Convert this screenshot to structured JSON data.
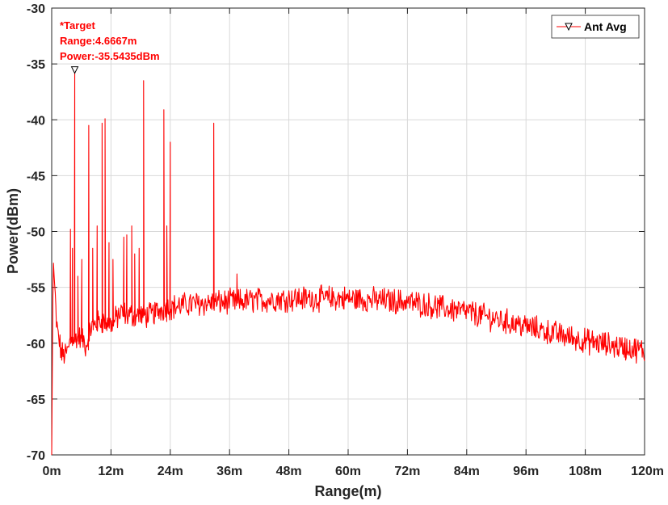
{
  "chart_data": {
    "type": "line",
    "title": "",
    "xlabel": "Range(m)",
    "ylabel": "Power(dBm)",
    "xlim": [
      0,
      120
    ],
    "ylim": [
      -70,
      -30
    ],
    "xticks": [
      0,
      12,
      24,
      36,
      48,
      60,
      72,
      84,
      96,
      108,
      120
    ],
    "xtick_labels": [
      "0m",
      "12m",
      "24m",
      "36m",
      "48m",
      "60m",
      "72m",
      "84m",
      "96m",
      "108m",
      "120m"
    ],
    "yticks": [
      -70,
      -65,
      -60,
      -55,
      -50,
      -45,
      -40,
      -35,
      -30
    ],
    "ytick_labels": [
      "-70",
      "-65",
      "-60",
      "-55",
      "-50",
      "-45",
      "-40",
      "-35",
      "-30"
    ],
    "grid": true,
    "legend": {
      "entries": [
        "Ant Avg"
      ],
      "placement": "top-right"
    },
    "colors": {
      "series": "#ff0000",
      "grid": "#d9d9d9",
      "axis": "#262626"
    },
    "series": [
      {
        "name": "Ant Avg",
        "peaks": [
          {
            "x": 3.8,
            "y": -49.8
          },
          {
            "x": 4.2,
            "y": -51.5
          },
          {
            "x": 4.6667,
            "y": -35.5435
          },
          {
            "x": 5.3,
            "y": -54.0
          },
          {
            "x": 6.1,
            "y": -52.5
          },
          {
            "x": 7.5,
            "y": -40.5
          },
          {
            "x": 8.3,
            "y": -51.5
          },
          {
            "x": 9.2,
            "y": -49.5
          },
          {
            "x": 10.2,
            "y": -40.3
          },
          {
            "x": 10.8,
            "y": -39.9
          },
          {
            "x": 11.6,
            "y": -51.0
          },
          {
            "x": 12.4,
            "y": -52.5
          },
          {
            "x": 14.6,
            "y": -50.5
          },
          {
            "x": 15.2,
            "y": -50.3
          },
          {
            "x": 16.2,
            "y": -49.5
          },
          {
            "x": 16.8,
            "y": -52.0
          },
          {
            "x": 17.7,
            "y": -51.5
          },
          {
            "x": 18.6,
            "y": -36.5
          },
          {
            "x": 22.7,
            "y": -39.1
          },
          {
            "x": 23.3,
            "y": -49.5
          },
          {
            "x": 24.0,
            "y": -42.0
          },
          {
            "x": 32.8,
            "y": -40.3
          },
          {
            "x": 37.5,
            "y": -53.8
          }
        ],
        "baseline": [
          {
            "x": 0.0,
            "y": -70.0
          },
          {
            "x": 0.3,
            "y": -52.3
          },
          {
            "x": 1.0,
            "y": -58.5
          },
          {
            "x": 2.0,
            "y": -61.0
          },
          {
            "x": 3.0,
            "y": -61.0
          },
          {
            "x": 4.0,
            "y": -59.5
          },
          {
            "x": 6.0,
            "y": -59.5
          },
          {
            "x": 7.0,
            "y": -60.3
          },
          {
            "x": 8.0,
            "y": -58.5
          },
          {
            "x": 10.0,
            "y": -58.0
          },
          {
            "x": 12.0,
            "y": -58.3
          },
          {
            "x": 14.0,
            "y": -57.3
          },
          {
            "x": 16.0,
            "y": -57.5
          },
          {
            "x": 18.0,
            "y": -57.5
          },
          {
            "x": 20.0,
            "y": -57.5
          },
          {
            "x": 22.0,
            "y": -57.0
          },
          {
            "x": 24.0,
            "y": -56.8
          },
          {
            "x": 28.0,
            "y": -56.5
          },
          {
            "x": 36.0,
            "y": -56.3
          },
          {
            "x": 48.0,
            "y": -56.0
          },
          {
            "x": 60.0,
            "y": -56.0
          },
          {
            "x": 72.0,
            "y": -56.3
          },
          {
            "x": 84.0,
            "y": -57.2
          },
          {
            "x": 96.0,
            "y": -58.5
          },
          {
            "x": 108.0,
            "y": -59.8
          },
          {
            "x": 120.0,
            "y": -60.7
          }
        ],
        "noise_amplitude_db": 1.0
      }
    ],
    "annotation": {
      "marker": "triangle-down",
      "x": 4.6667,
      "y": -35.5435,
      "lines": [
        "*Target",
        "Range:4.6667m",
        "Power:-35.5435dBm"
      ]
    }
  }
}
